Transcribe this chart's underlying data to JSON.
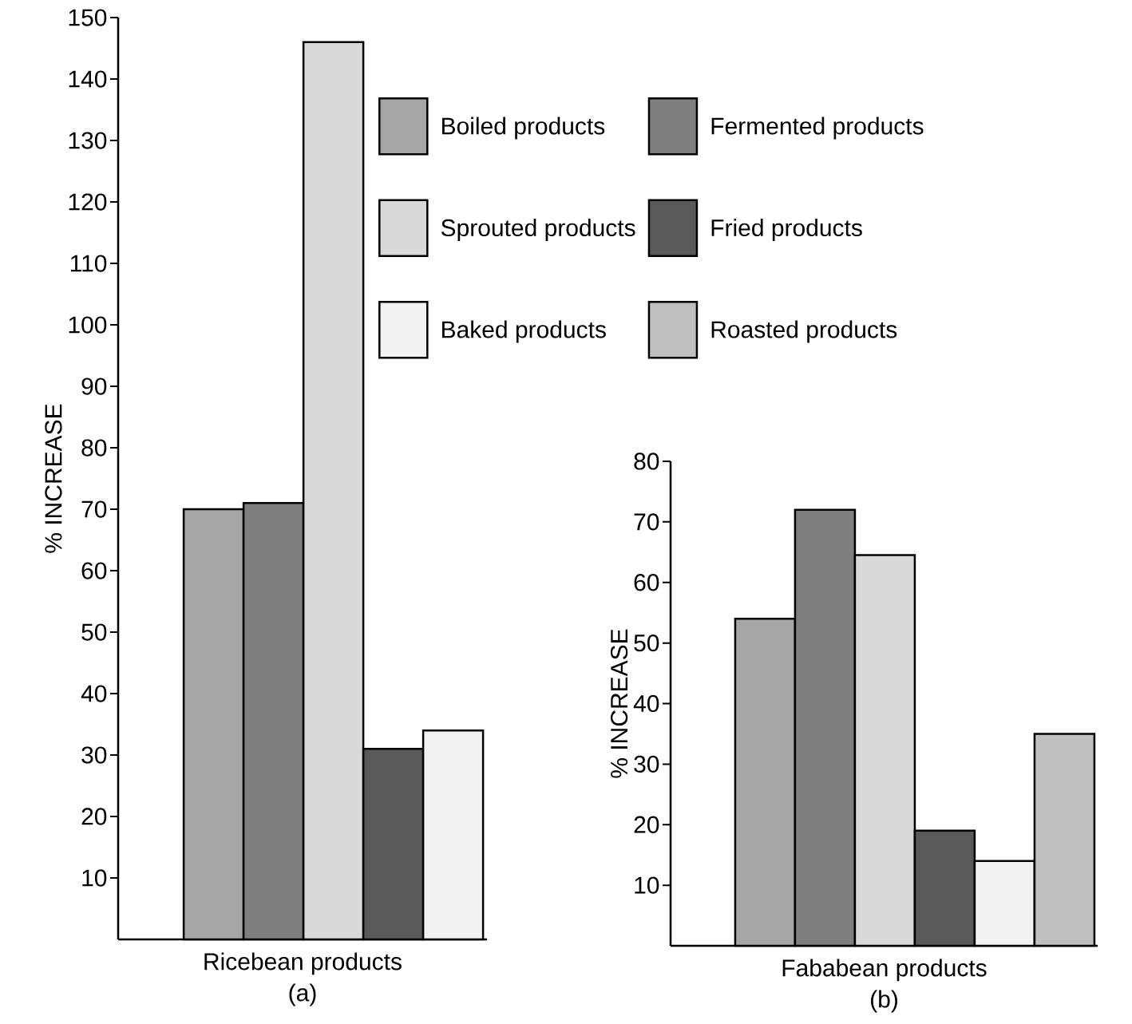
{
  "chart_data": [
    {
      "type": "bar",
      "categories": [
        null
      ],
      "xlabel": "Ricebean products",
      "annotations": [
        "(a)"
      ],
      "ylabel": "% INCREASE",
      "ylim": [
        0,
        150
      ],
      "yticks": [
        10,
        20,
        30,
        40,
        50,
        60,
        70,
        80,
        90,
        100,
        110,
        120,
        130,
        140,
        150
      ],
      "series": [
        {
          "color": "#a6a6a6",
          "values": [
            70
          ]
        },
        {
          "color": "#7f7f7f",
          "values": [
            71
          ]
        },
        {
          "color": "#d9d9d9",
          "values": [
            146
          ]
        },
        {
          "color": "#595959",
          "values": [
            31
          ]
        },
        {
          "color": "#f2f2f2",
          "values": [
            34
          ]
        }
      ]
    },
    {
      "type": "bar",
      "categories": [
        null
      ],
      "xlabel": "Fababean products",
      "annotations": [
        "(b)"
      ],
      "ylabel": "% INCREASE",
      "ylim": [
        0,
        80
      ],
      "yticks": [
        10,
        20,
        30,
        40,
        50,
        60,
        70,
        80
      ],
      "legend": "top",
      "series": [
        {
          "name": "Boiled products",
          "color": "#a6a6a6",
          "values": [
            54
          ]
        },
        {
          "name": "Fermented products",
          "color": "#7f7f7f",
          "values": [
            72
          ]
        },
        {
          "name": "Sprouted products",
          "color": "#d9d9d9",
          "values": [
            64.5
          ]
        },
        {
          "name": "Fried products",
          "color": "#595959",
          "values": [
            19
          ]
        },
        {
          "name": "Baked products",
          "color": "#f2f2f2",
          "values": [
            14
          ]
        },
        {
          "name": "Roasted products",
          "color": "#bfbfbf",
          "values": [
            35
          ]
        }
      ]
    }
  ]
}
